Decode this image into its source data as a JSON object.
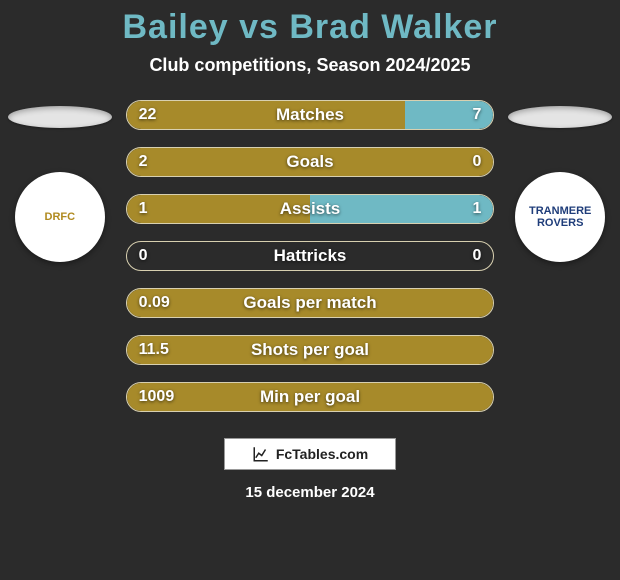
{
  "background_color": "#2b2b2b",
  "title": "Bailey vs Brad Walker",
  "title_color": "#6fb9c4",
  "subtitle": "Club competitions, Season 2024/2025",
  "footer_brand": "FcTables.com",
  "footer_date": "15 december 2024",
  "player_left": {
    "ellipse_color": "#e4e4e4",
    "crest_bg": "#ffffff",
    "crest_fg": "#b08a1f",
    "crest_text": "DRFC"
  },
  "player_right": {
    "ellipse_color": "#e4e4e4",
    "crest_bg": "#ffffff",
    "crest_fg": "#1f3d7a",
    "crest_text": "TRANMERE ROVERS"
  },
  "bar_style": {
    "left_fill": "#a78a2a",
    "right_fill": "#6fb9c4",
    "border_color": "#d8d0b0"
  },
  "stats": [
    {
      "label": "Matches",
      "left_val": "22",
      "right_val": "7",
      "left_pct": 76,
      "right_pct": 24
    },
    {
      "label": "Goals",
      "left_val": "2",
      "right_val": "0",
      "left_pct": 100,
      "right_pct": 0
    },
    {
      "label": "Assists",
      "left_val": "1",
      "right_val": "1",
      "left_pct": 50,
      "right_pct": 50
    },
    {
      "label": "Hattricks",
      "left_val": "0",
      "right_val": "0",
      "left_pct": 0,
      "right_pct": 0
    },
    {
      "label": "Goals per match",
      "left_val": "0.09",
      "right_val": "",
      "left_pct": 100,
      "right_pct": 0
    },
    {
      "label": "Shots per goal",
      "left_val": "11.5",
      "right_val": "",
      "left_pct": 100,
      "right_pct": 0
    },
    {
      "label": "Min per goal",
      "left_val": "1009",
      "right_val": "",
      "left_pct": 100,
      "right_pct": 0
    }
  ]
}
